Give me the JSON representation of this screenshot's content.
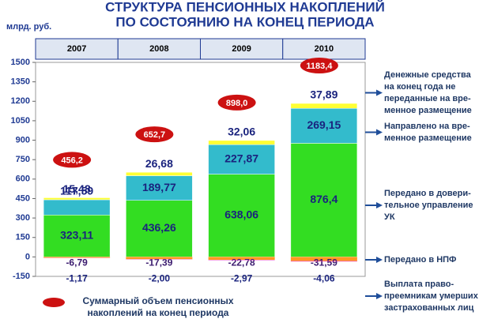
{
  "chart_data": {
    "type": "stacked-bar",
    "title": [
      "СТРУКТУРА ПЕНСИОННЫХ НАКОПЛЕНИЙ",
      "ПО СОСТОЯНИЮ НА КОНЕЦ ПЕРИОДА"
    ],
    "y_unit": "млрд. руб.",
    "categories": [
      "2007",
      "2008",
      "2009",
      "2010"
    ],
    "ylim": [
      -150,
      1500
    ],
    "yticks": [
      -150,
      0,
      150,
      300,
      450,
      600,
      750,
      900,
      1050,
      1200,
      1350,
      1500
    ],
    "series": [
      {
        "name": [
          "Денежные средства",
          "на конец года не",
          "переданные на вре-",
          "менное размещение"
        ],
        "color": "#ffff33",
        "values": [
          15.48,
          26.68,
          32.06,
          37.89
        ],
        "value_labels": [
          "15,48",
          "26,68",
          "32,06",
          "37,89"
        ]
      },
      {
        "name": [
          "Направлено на вре-",
          "менное размещение"
        ],
        "color": "#33bbcc",
        "values": [
          117.59,
          189.77,
          227.87,
          269.15
        ],
        "value_labels": [
          "117,59",
          "189,77",
          "227,87",
          "269,15"
        ]
      },
      {
        "name": [
          "Передано в довери-",
          "тельное управление",
          "УК"
        ],
        "color": "#33dd22",
        "values": [
          323.11,
          436.26,
          638.06,
          876.4
        ],
        "value_labels": [
          "323,11",
          "436,26",
          "638,06",
          "876,4"
        ]
      },
      {
        "name": [
          "Передано в НПФ"
        ],
        "color": "#ff9922",
        "values": [
          -6.79,
          -17.39,
          -22.78,
          -31.59
        ],
        "value_labels": [
          "-6,79",
          "-17,39",
          "-22,78",
          "-31,59"
        ]
      },
      {
        "name": [
          "Выплата право-",
          "преемникам умерших",
          "застрахованных лиц"
        ],
        "color": "#ee44cc",
        "values": [
          -1.17,
          -2.0,
          -2.97,
          -4.06
        ],
        "value_labels": [
          "-1,17",
          "-2,00",
          "-2,97",
          "-4,06"
        ]
      }
    ],
    "totals": {
      "name": [
        "Суммарный объем пенсионных",
        "накоплений на конец периода"
      ],
      "color": "#cc1111",
      "values": [
        456.2,
        652.7,
        898.0,
        1183.4
      ],
      "value_labels": [
        "456,2",
        "652,7",
        "898,0",
        "1183,4"
      ]
    }
  }
}
